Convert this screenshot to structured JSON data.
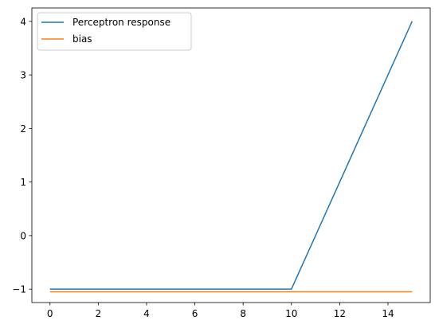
{
  "chart_data": {
    "type": "line",
    "title": "",
    "xlabel": "",
    "ylabel": "",
    "xlim": [
      -0.75,
      15.75
    ],
    "ylim": [
      -1.25,
      4.25
    ],
    "x_ticks": [
      0,
      2,
      4,
      6,
      8,
      10,
      12,
      14
    ],
    "y_ticks": [
      -1,
      0,
      1,
      2,
      3,
      4
    ],
    "x_tick_labels": [
      "0",
      "2",
      "4",
      "6",
      "8",
      "10",
      "12",
      "14"
    ],
    "y_tick_labels": [
      "−1",
      "0",
      "1",
      "2",
      "3",
      "4"
    ],
    "grid": false,
    "legend_position": "upper-left",
    "series": [
      {
        "name": "Perceptron response",
        "color": "#1f77b4",
        "x": [
          0,
          1,
          2,
          3,
          4,
          5,
          6,
          7,
          8,
          9,
          10,
          11,
          12,
          13,
          14,
          15
        ],
        "y": [
          -1,
          -1,
          -1,
          -1,
          -1,
          -1,
          -1,
          -1,
          -1,
          -1,
          -1,
          0,
          1,
          2,
          3,
          4
        ]
      },
      {
        "name": "bias",
        "color": "#ff7f0e",
        "x": [
          0,
          15
        ],
        "y": [
          -1.05,
          -1.05
        ]
      }
    ]
  }
}
